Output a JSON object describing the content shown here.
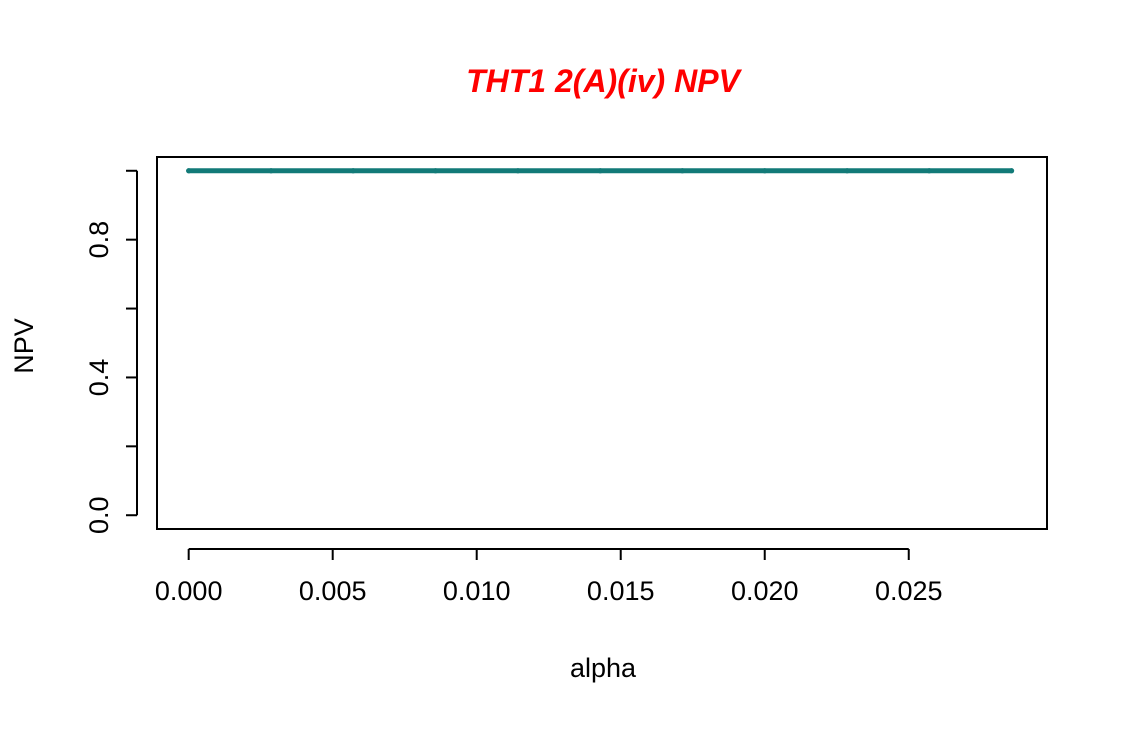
{
  "chart_data": {
    "type": "line",
    "title": "THT1 2(A)(iv) NPV",
    "xlabel": "alpha",
    "ylabel": "NPV",
    "xlim": [
      -0.0011,
      0.0298
    ],
    "ylim": [
      -0.04,
      1.04
    ],
    "x_ticks": [
      0.0,
      0.005,
      0.01,
      0.015,
      0.02,
      0.025
    ],
    "x_tick_labels": [
      "0.000",
      "0.005",
      "0.010",
      "0.015",
      "0.020",
      "0.025"
    ],
    "y_ticks": [
      0.0,
      0.2,
      0.4,
      0.6,
      0.8,
      1.0
    ],
    "y_tick_labels": [
      "0.0",
      "",
      "0.4",
      "",
      "0.8",
      ""
    ],
    "series": [
      {
        "name": "NPV",
        "x": [
          0.0,
          0.00286,
          0.00571,
          0.00857,
          0.01143,
          0.01429,
          0.01714,
          0.02,
          0.02286,
          0.02571,
          0.02857
        ],
        "values": [
          1,
          1,
          1,
          1,
          1,
          1,
          1,
          1,
          1,
          1,
          1
        ]
      }
    ],
    "colors": {
      "title": "#ff0000",
      "line": "#127a78",
      "axis": "#000000"
    }
  }
}
